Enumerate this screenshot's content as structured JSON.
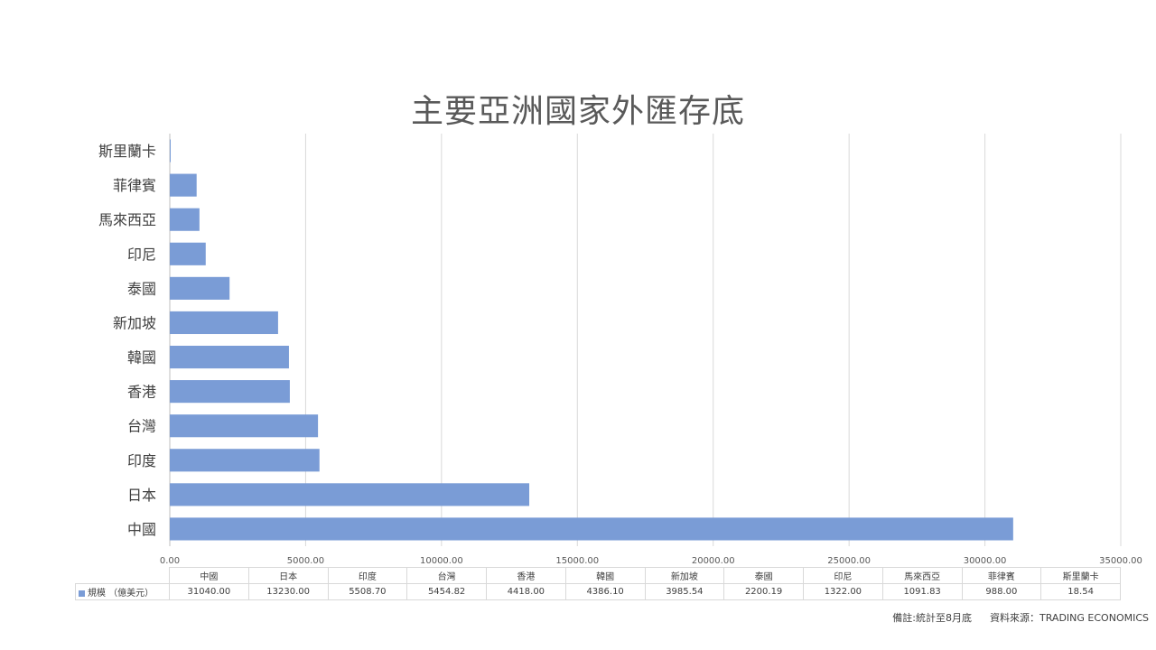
{
  "chart_data": {
    "type": "bar",
    "orientation": "horizontal",
    "title": "主要亞洲國家外匯存底",
    "categories": [
      "中國",
      "日本",
      "印度",
      "台灣",
      "香港",
      "韓國",
      "新加坡",
      "泰國",
      "印尼",
      "馬來西亞",
      "菲律賓",
      "斯里蘭卡"
    ],
    "series": [
      {
        "name": "規模 （億美元）",
        "values": [
          31040.0,
          13230.0,
          5508.7,
          5454.82,
          4418.0,
          4386.1,
          3985.54,
          2200.19,
          1322.0,
          1091.83,
          988.0,
          18.54
        ]
      }
    ],
    "table_values": [
      "31040.00",
      "13230.00",
      "5508.70",
      "5454.82",
      "4418.00",
      "4386.10",
      "3985.54",
      "2200.19",
      "1322.00",
      "1091.83",
      "988.00",
      "18.54"
    ],
    "xlim": [
      0,
      35000
    ],
    "xticks": [
      "0.00",
      "5000.00",
      "10000.00",
      "15000.00",
      "20000.00",
      "25000.00",
      "30000.00",
      "35000.00"
    ],
    "grid": true,
    "bar_color": "#7a9cd6",
    "legend": "data-table"
  },
  "footnote": {
    "note": "備註:統計至8月底",
    "source": "資料來源：TRADING ECONOMICS"
  }
}
